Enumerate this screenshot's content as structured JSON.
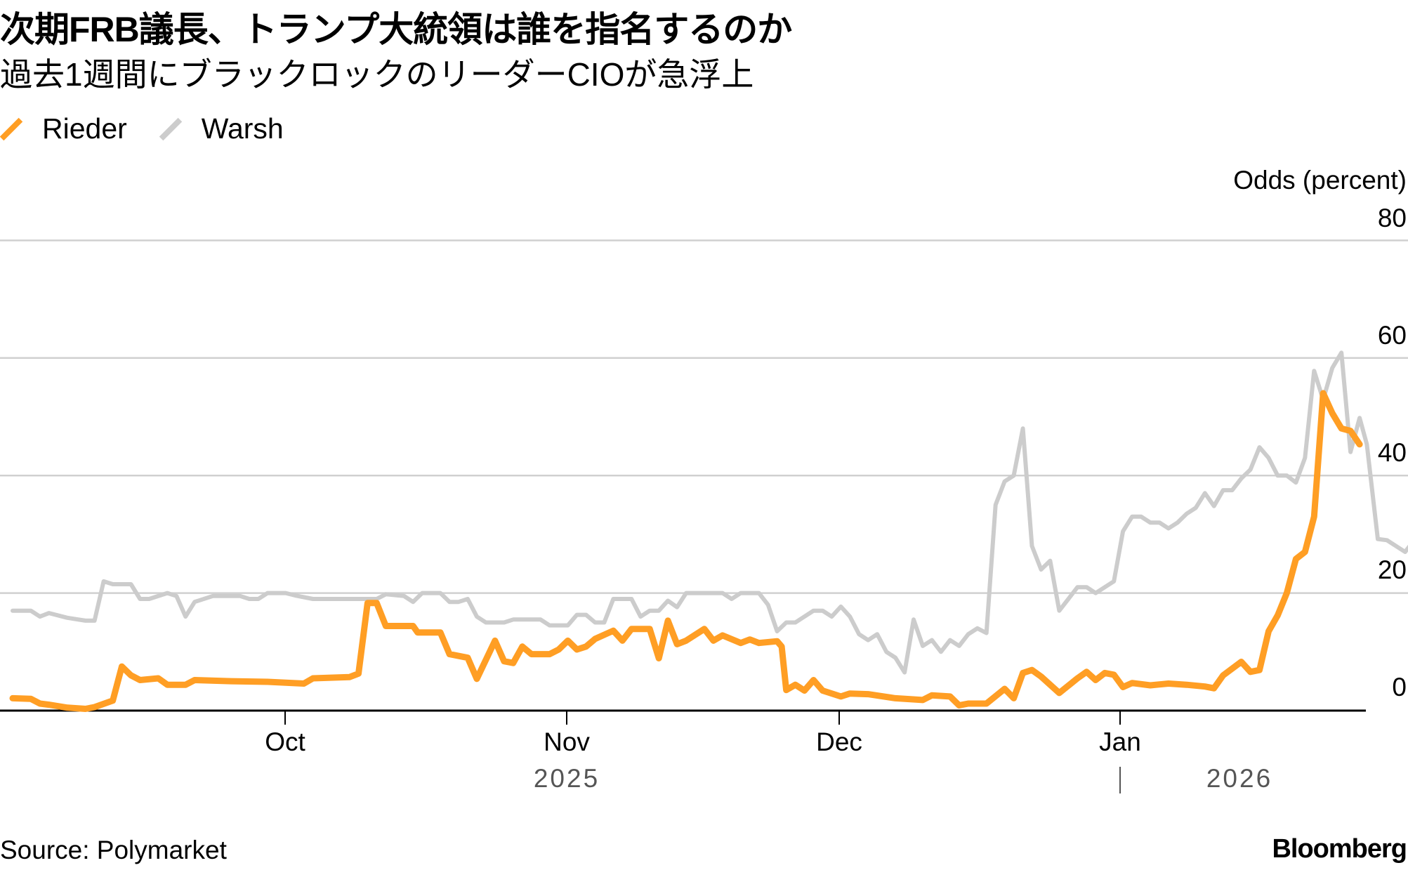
{
  "header": {
    "title": "次期FRB議長、トランプ大統領は誰を指名するのか",
    "subtitle": "過去1週間にブラックロックのリーダーCIOが急浮上"
  },
  "legend": [
    {
      "label": "Rieder",
      "color": "#FF9E24"
    },
    {
      "label": "Warsh",
      "color": "#CCCCCC"
    }
  ],
  "axis": {
    "y_label": "Odds (percent)",
    "y_ticks": [
      "80",
      "60",
      "40",
      "20",
      "0"
    ],
    "x_ticks": [
      "Oct",
      "Nov",
      "Dec",
      "Jan"
    ],
    "years": [
      "2025",
      "2026"
    ]
  },
  "footer": {
    "source": "Source: Polymarket",
    "brand": "Bloomberg"
  },
  "chart_data": {
    "type": "line",
    "title": "次期FRB議長、トランプ大統領は誰を指名するのか",
    "subtitle": "過去1週間にブラックロックのリーダーCIOが急浮上",
    "xlabel": "",
    "ylabel": "Odds (percent)",
    "ylim": [
      0,
      80
    ],
    "y_ticks": [
      0,
      20,
      40,
      60,
      80
    ],
    "x_ticks": [
      "Oct 2025",
      "Nov 2025",
      "Dec 2025",
      "Jan 2026"
    ],
    "x_unit": "days since 2025-09-01",
    "grid": true,
    "legend_position": "top-left",
    "series": [
      {
        "name": "Rieder",
        "color": "#FF9E24",
        "points": [
          [
            0,
            2.1
          ],
          [
            2,
            2
          ],
          [
            3,
            1.2
          ],
          [
            4,
            1
          ],
          [
            6,
            0.5
          ],
          [
            8,
            0.3
          ],
          [
            9,
            0.6
          ],
          [
            11,
            1.7
          ],
          [
            12,
            7.5
          ],
          [
            13,
            6
          ],
          [
            14,
            5.2
          ],
          [
            16,
            5.5
          ],
          [
            17,
            4.4
          ],
          [
            19,
            4.4
          ],
          [
            20,
            5.2
          ],
          [
            24,
            5
          ],
          [
            28,
            4.9
          ],
          [
            32,
            4.6
          ],
          [
            33,
            5.5
          ],
          [
            37,
            5.7
          ],
          [
            38,
            6.3
          ],
          [
            39,
            18.3
          ],
          [
            40,
            18.3
          ],
          [
            41,
            14.4
          ],
          [
            44,
            14.4
          ],
          [
            44.5,
            13.3
          ],
          [
            47,
            13.3
          ],
          [
            48,
            9.6
          ],
          [
            50,
            9
          ],
          [
            51,
            5.4
          ],
          [
            53,
            11.9
          ],
          [
            54,
            8.4
          ],
          [
            55,
            8.1
          ],
          [
            56,
            10.9
          ],
          [
            57,
            9.6
          ],
          [
            59,
            9.6
          ],
          [
            60,
            10.4
          ],
          [
            61,
            11.9
          ],
          [
            62,
            10.4
          ],
          [
            63,
            10.9
          ],
          [
            64,
            12.2
          ],
          [
            66,
            13.6
          ],
          [
            67,
            11.9
          ],
          [
            68,
            13.9
          ],
          [
            70,
            13.9
          ],
          [
            71,
            8.9
          ],
          [
            72,
            15.3
          ],
          [
            73,
            11.3
          ],
          [
            74,
            11.9
          ],
          [
            76,
            13.9
          ],
          [
            77,
            11.9
          ],
          [
            78,
            12.8
          ],
          [
            80,
            11.5
          ],
          [
            81,
            12.1
          ],
          [
            82,
            11.5
          ],
          [
            84,
            11.8
          ],
          [
            84.5,
            10.9
          ],
          [
            85,
            3.5
          ],
          [
            86,
            4.4
          ],
          [
            87,
            3.4
          ],
          [
            88,
            5.2
          ],
          [
            89,
            3.4
          ],
          [
            91,
            2.4
          ],
          [
            92,
            2.9
          ],
          [
            94,
            2.8
          ],
          [
            97,
            2.1
          ],
          [
            100,
            1.8
          ],
          [
            101,
            2.6
          ],
          [
            103,
            2.4
          ],
          [
            104,
            0.9
          ],
          [
            105,
            1.2
          ],
          [
            107,
            1.2
          ],
          [
            109,
            3.7
          ],
          [
            110,
            2.1
          ],
          [
            111,
            6.4
          ],
          [
            112,
            6.9
          ],
          [
            113,
            5.8
          ],
          [
            115,
            3
          ],
          [
            117,
            5.5
          ],
          [
            118,
            6.6
          ],
          [
            119,
            5.2
          ],
          [
            120,
            6.4
          ],
          [
            121,
            6.1
          ],
          [
            122,
            4
          ],
          [
            123,
            4.7
          ],
          [
            125,
            4.3
          ],
          [
            127,
            4.6
          ],
          [
            129,
            4.4
          ],
          [
            131,
            4.1
          ],
          [
            132,
            3.8
          ],
          [
            133,
            6
          ],
          [
            135,
            8.3
          ],
          [
            136,
            6.6
          ],
          [
            137,
            6.9
          ],
          [
            138,
            13.5
          ],
          [
            139,
            16.2
          ],
          [
            140,
            20
          ],
          [
            141,
            25.8
          ],
          [
            142,
            27
          ],
          [
            143,
            33
          ],
          [
            144,
            54
          ],
          [
            145,
            50.6
          ],
          [
            146,
            48
          ],
          [
            147,
            47.6
          ],
          [
            148,
            45.3
          ]
        ]
      },
      {
        "name": "Warsh",
        "color": "#CCCCCC",
        "points": [
          [
            0,
            17
          ],
          [
            2,
            17
          ],
          [
            3,
            16
          ],
          [
            4,
            16.6
          ],
          [
            6,
            15.8
          ],
          [
            8,
            15.3
          ],
          [
            9,
            15.3
          ],
          [
            10,
            22
          ],
          [
            11,
            21.5
          ],
          [
            13,
            21.5
          ],
          [
            14,
            19
          ],
          [
            15,
            19
          ],
          [
            17,
            20
          ],
          [
            18,
            19.5
          ],
          [
            19,
            16
          ],
          [
            20,
            18.5
          ],
          [
            22,
            19.5
          ],
          [
            25,
            19.5
          ],
          [
            26,
            19
          ],
          [
            27,
            19
          ],
          [
            28,
            20
          ],
          [
            30,
            20
          ],
          [
            31,
            19.6
          ],
          [
            33,
            19
          ],
          [
            36,
            19
          ],
          [
            40,
            19
          ],
          [
            41,
            19.8
          ],
          [
            43,
            19.5
          ],
          [
            44,
            18.5
          ],
          [
            45,
            20
          ],
          [
            47,
            20
          ],
          [
            48,
            18.5
          ],
          [
            49,
            18.5
          ],
          [
            50,
            19
          ],
          [
            51,
            16
          ],
          [
            52,
            15
          ],
          [
            54,
            15
          ],
          [
            55,
            15.5
          ],
          [
            58,
            15.5
          ],
          [
            59,
            14.5
          ],
          [
            61,
            14.5
          ],
          [
            62,
            16.3
          ],
          [
            63,
            16.3
          ],
          [
            64,
            15
          ],
          [
            65,
            15
          ],
          [
            66,
            19
          ],
          [
            68,
            19
          ],
          [
            69,
            16
          ],
          [
            70,
            17
          ],
          [
            71,
            17
          ],
          [
            72,
            18.7
          ],
          [
            73,
            17.6
          ],
          [
            74,
            20
          ],
          [
            78,
            20
          ],
          [
            79,
            19
          ],
          [
            80,
            20
          ],
          [
            82,
            20
          ],
          [
            83,
            18
          ],
          [
            84,
            13.5
          ],
          [
            85,
            15
          ],
          [
            86,
            15
          ],
          [
            87,
            16
          ],
          [
            88,
            17
          ],
          [
            89,
            17
          ],
          [
            90,
            16
          ],
          [
            91,
            17.7
          ],
          [
            92,
            16
          ],
          [
            93,
            13
          ],
          [
            94,
            12
          ],
          [
            95,
            13
          ],
          [
            96,
            10
          ],
          [
            97,
            9
          ],
          [
            98,
            6.5
          ],
          [
            99,
            15.5
          ],
          [
            100,
            11
          ],
          [
            101,
            12
          ],
          [
            102,
            10
          ],
          [
            103,
            12
          ],
          [
            104,
            11
          ],
          [
            105,
            13
          ],
          [
            106,
            14
          ],
          [
            107,
            13.2
          ],
          [
            108,
            35
          ],
          [
            109,
            39
          ],
          [
            110,
            40
          ],
          [
            111,
            48
          ],
          [
            112,
            28
          ],
          [
            113,
            24
          ],
          [
            114,
            25.5
          ],
          [
            115,
            17
          ],
          [
            116,
            19
          ],
          [
            117,
            21
          ],
          [
            118,
            21
          ],
          [
            119,
            20
          ],
          [
            121,
            22
          ],
          [
            122,
            30.5
          ],
          [
            123,
            33
          ],
          [
            124,
            33
          ],
          [
            125,
            32
          ],
          [
            126,
            32
          ],
          [
            127,
            31
          ],
          [
            128,
            32
          ],
          [
            129,
            33.5
          ],
          [
            130,
            34.5
          ],
          [
            131,
            37
          ],
          [
            132,
            34.8
          ],
          [
            133,
            37.5
          ],
          [
            134,
            37.5
          ],
          [
            135,
            39.5
          ],
          [
            136,
            41
          ],
          [
            137,
            44.8
          ],
          [
            138,
            43
          ],
          [
            139,
            40
          ],
          [
            140,
            40
          ],
          [
            141,
            38.8
          ],
          [
            142,
            43
          ],
          [
            143,
            57.8
          ],
          [
            144,
            52.9
          ],
          [
            145,
            58.3
          ],
          [
            146,
            60.9
          ],
          [
            147,
            44
          ],
          [
            148,
            49.8
          ],
          [
            148.8,
            45.3
          ],
          [
            150,
            29.2
          ],
          [
            151,
            29
          ],
          [
            152,
            28
          ],
          [
            153,
            27
          ],
          [
            154,
            29
          ]
        ]
      }
    ]
  }
}
